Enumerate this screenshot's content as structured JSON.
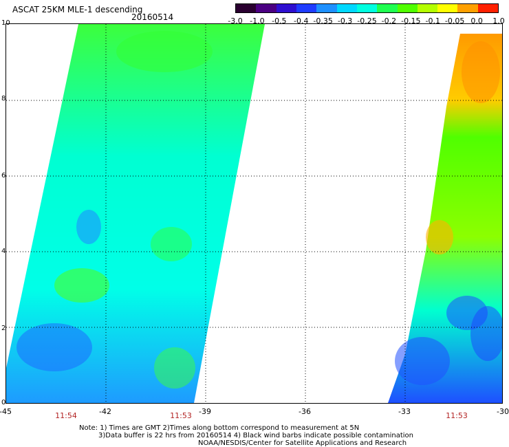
{
  "header": {
    "title": "ASCAT 25KM MLE-1 descending",
    "date": "20160514"
  },
  "colorbar": {
    "labels": [
      "-3.0",
      "-1.0",
      "-0.5",
      "-0.4",
      "-0.35",
      "-0.3",
      "-0.25",
      "-0.2",
      "-0.15",
      "-0.1",
      "-0.05",
      "0.0",
      "1.0"
    ],
    "colors": [
      "#2a0030",
      "#4b0082",
      "#2e0fd0",
      "#1f3cff",
      "#1e90ff",
      "#00d8ff",
      "#00ffe0",
      "#1eff50",
      "#50ff00",
      "#b4ff00",
      "#ffff00",
      "#ffa000",
      "#ff2000"
    ]
  },
  "axes": {
    "x_ticks": [
      "-45",
      "-42",
      "-39",
      "-36",
      "-33",
      "-30"
    ],
    "y_ticks": [
      "0",
      "2",
      "4",
      "6",
      "8",
      "10"
    ],
    "times": [
      "11:54",
      "11:53",
      "11:53"
    ]
  },
  "notes": {
    "line1": "Note: 1) Times are GMT 2)Times along bottom correspond to measurement at 5N",
    "line2": "3)Data buffer is 22 hrs from 20160514 4) Black wind barbs indicate possible contamination",
    "line3": "NOAA/NESDIS/Center for Satellite Applications and Research"
  }
}
